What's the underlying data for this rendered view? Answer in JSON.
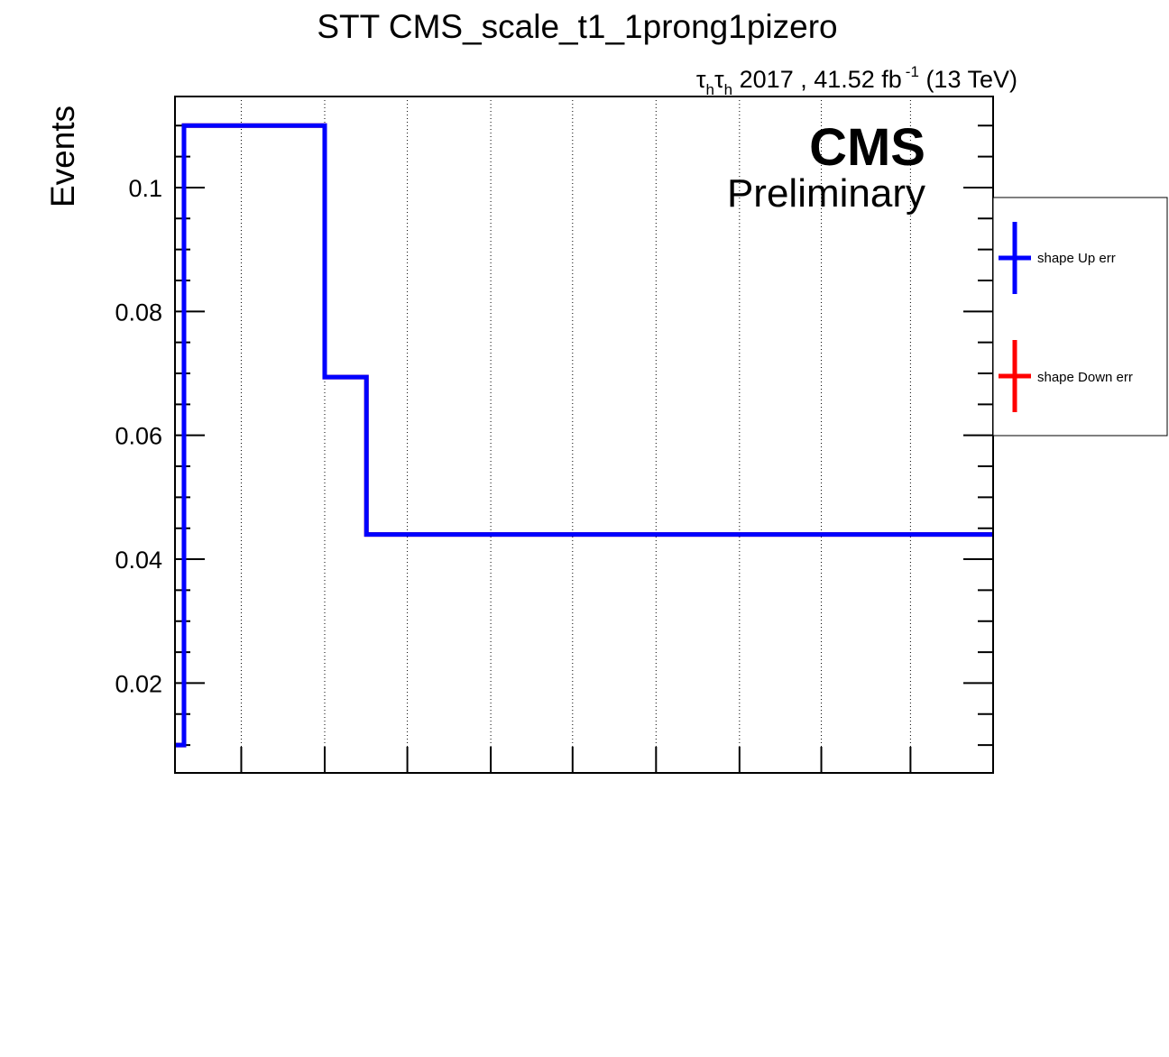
{
  "chart_data": {
    "type": "line",
    "title": "STT CMS_scale_t1_1prong1pizero",
    "lumi": {
      "channel_tau": "τ",
      "channel_sub": "h",
      "text": "2017 , 41.52 fb",
      "sup": "-1",
      "energy": "(13 TeV)"
    },
    "cms_label": "CMS",
    "cms_sublabel": "Preliminary",
    "ylabel": "Events",
    "xlabel": "",
    "ylim": [
      0.0055,
      0.1147
    ],
    "xlim": [
      0,
      100
    ],
    "yticks": [
      {
        "value": 0.02,
        "label": "0.02"
      },
      {
        "value": 0.04,
        "label": "0.04"
      },
      {
        "value": 0.06,
        "label": "0.06"
      },
      {
        "value": 0.08,
        "label": "0.08"
      },
      {
        "value": 0.1,
        "label": "0.1"
      }
    ],
    "x_gridlines": [
      8.1,
      18.3,
      28.4,
      38.6,
      48.6,
      58.8,
      69.0,
      79.0,
      89.9
    ],
    "grid": {
      "x": true,
      "y": false
    },
    "legend_position": "right",
    "series": [
      {
        "name": "shape Up err",
        "color": "#0000ff",
        "bin_edges": [
          0,
          1.1,
          18.3,
          23.4,
          100
        ],
        "values": [
          0.01,
          0.11,
          0.0694,
          0.044
        ]
      },
      {
        "name": "shape Down err",
        "color": "#ff0000",
        "bin_edges": [
          0,
          1.1,
          18.3,
          23.4,
          100
        ],
        "values": [
          0.01,
          0.11,
          0.0694,
          0.044
        ]
      }
    ]
  }
}
